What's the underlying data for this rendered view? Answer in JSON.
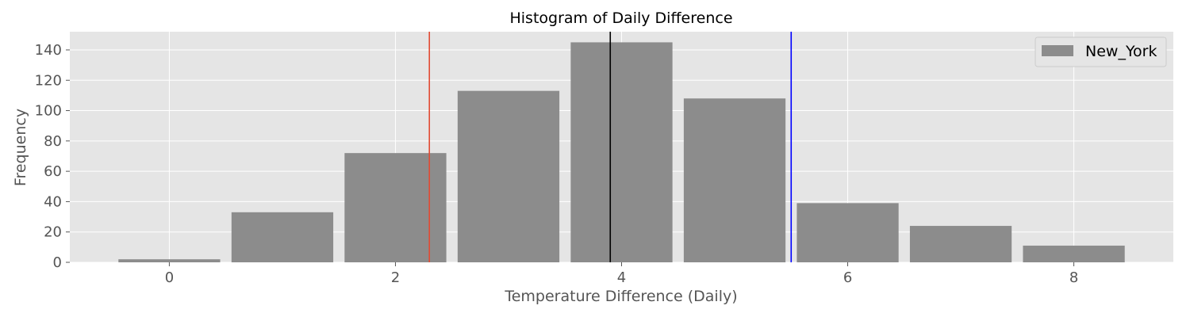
{
  "chart_data": {
    "type": "bar",
    "title": "Histogram of Daily Difference",
    "xlabel": "Temperature Difference (Daily)",
    "ylabel": "Frequency",
    "x": [
      0,
      1,
      2,
      3,
      4,
      5,
      6,
      7,
      8
    ],
    "series": [
      {
        "name": "New_York",
        "values": [
          2,
          33,
          72,
          113,
          145,
          108,
          39,
          24,
          11
        ],
        "color": "#8c8c8c"
      }
    ],
    "xlim": [
      -0.88,
      8.88
    ],
    "ylim": [
      0,
      152
    ],
    "xticks": [
      0,
      2,
      4,
      6,
      8
    ],
    "yticks": [
      0,
      20,
      40,
      60,
      80,
      100,
      120,
      140
    ],
    "vertical_lines": [
      {
        "x": 2.3,
        "color": "#e24a33"
      },
      {
        "x": 3.9,
        "color": "#000000"
      },
      {
        "x": 5.5,
        "color": "#0000ff"
      }
    ],
    "grid": true,
    "legend_position": "top-right",
    "background_color": "#e5e5e5"
  }
}
